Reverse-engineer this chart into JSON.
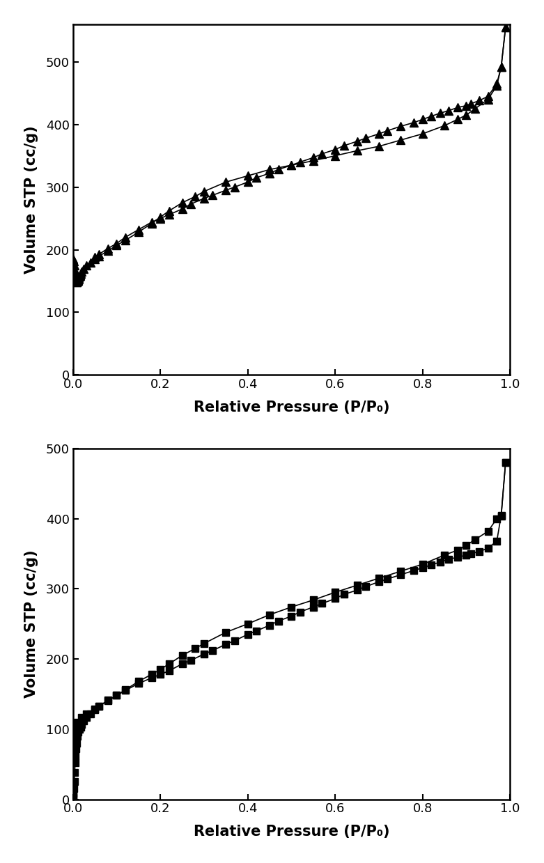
{
  "plot1": {
    "ylabel": "Volume STP (cc/g)",
    "xlabel": "Relative Pressure (P/P₀)",
    "ylim": [
      0,
      560
    ],
    "xlim": [
      0.0,
      1.0
    ],
    "yticks": [
      0,
      100,
      200,
      300,
      400,
      500
    ],
    "xticks": [
      0.0,
      0.2,
      0.4,
      0.6,
      0.8,
      1.0
    ],
    "adsorption_x": [
      0.0005,
      0.001,
      0.002,
      0.003,
      0.004,
      0.005,
      0.006,
      0.007,
      0.008,
      0.009,
      0.01,
      0.011,
      0.012,
      0.013,
      0.014,
      0.015,
      0.016,
      0.017,
      0.018,
      0.02,
      0.025,
      0.03,
      0.04,
      0.05,
      0.06,
      0.08,
      0.1,
      0.12,
      0.15,
      0.18,
      0.2,
      0.22,
      0.25,
      0.28,
      0.3,
      0.35,
      0.4,
      0.45,
      0.5,
      0.55,
      0.6,
      0.65,
      0.7,
      0.75,
      0.8,
      0.85,
      0.88,
      0.9,
      0.92,
      0.95,
      0.97,
      0.98,
      0.99
    ],
    "adsorption_y": [
      185,
      185,
      182,
      175,
      168,
      162,
      155,
      150,
      148,
      148,
      149,
      150,
      151,
      153,
      155,
      157,
      158,
      160,
      162,
      165,
      170,
      175,
      180,
      185,
      190,
      198,
      207,
      215,
      228,
      242,
      252,
      262,
      275,
      285,
      293,
      308,
      318,
      328,
      335,
      342,
      350,
      358,
      365,
      375,
      385,
      398,
      408,
      415,
      425,
      440,
      462,
      492,
      555
    ],
    "desorption_x": [
      0.99,
      0.98,
      0.97,
      0.95,
      0.93,
      0.91,
      0.9,
      0.88,
      0.86,
      0.84,
      0.82,
      0.8,
      0.78,
      0.75,
      0.72,
      0.7,
      0.67,
      0.65,
      0.62,
      0.6,
      0.57,
      0.55,
      0.52,
      0.5,
      0.47,
      0.45,
      0.42,
      0.4,
      0.37,
      0.35,
      0.32,
      0.3,
      0.27,
      0.25,
      0.22,
      0.2,
      0.18,
      0.15,
      0.12,
      0.1,
      0.08,
      0.06,
      0.05
    ],
    "desorption_y": [
      555,
      492,
      465,
      445,
      438,
      433,
      430,
      427,
      422,
      418,
      413,
      408,
      403,
      397,
      390,
      385,
      378,
      373,
      366,
      360,
      353,
      347,
      340,
      335,
      328,
      322,
      315,
      308,
      300,
      295,
      287,
      282,
      273,
      265,
      256,
      250,
      244,
      232,
      220,
      210,
      202,
      193,
      188
    ]
  },
  "plot2": {
    "ylabel": "Volume STP (cc/g)",
    "xlabel": "Relative Pressure (P/P₀)",
    "ylim": [
      0,
      500
    ],
    "xlim": [
      0.0,
      1.0
    ],
    "yticks": [
      0,
      100,
      200,
      300,
      400,
      500
    ],
    "xticks": [
      0.0,
      0.2,
      0.4,
      0.6,
      0.8,
      1.0
    ],
    "adsorption_x": [
      0.0003,
      0.0005,
      0.001,
      0.002,
      0.003,
      0.004,
      0.005,
      0.006,
      0.007,
      0.008,
      0.01,
      0.012,
      0.015,
      0.018,
      0.02,
      0.025,
      0.03,
      0.04,
      0.05,
      0.06,
      0.08,
      0.1,
      0.12,
      0.15,
      0.18,
      0.2,
      0.22,
      0.25,
      0.28,
      0.3,
      0.35,
      0.4,
      0.45,
      0.5,
      0.55,
      0.6,
      0.65,
      0.7,
      0.75,
      0.8,
      0.85,
      0.88,
      0.9,
      0.92,
      0.95,
      0.97,
      0.98,
      0.99
    ],
    "adsorption_y": [
      3,
      5,
      8,
      15,
      25,
      38,
      52,
      62,
      72,
      80,
      90,
      96,
      100,
      103,
      107,
      112,
      117,
      122,
      128,
      133,
      141,
      148,
      156,
      168,
      178,
      185,
      193,
      205,
      215,
      222,
      238,
      250,
      263,
      274,
      284,
      295,
      305,
      315,
      325,
      335,
      348,
      355,
      362,
      370,
      382,
      400,
      404,
      480
    ],
    "desorption_x": [
      0.99,
      0.98,
      0.97,
      0.95,
      0.93,
      0.91,
      0.9,
      0.88,
      0.86,
      0.84,
      0.82,
      0.8,
      0.78,
      0.75,
      0.72,
      0.7,
      0.67,
      0.65,
      0.62,
      0.6,
      0.57,
      0.55,
      0.52,
      0.5,
      0.47,
      0.45,
      0.42,
      0.4,
      0.37,
      0.35,
      0.32,
      0.3,
      0.27,
      0.25,
      0.22,
      0.2,
      0.18,
      0.15,
      0.12,
      0.1,
      0.08,
      0.06,
      0.05,
      0.03,
      0.02,
      0.01,
      0.005,
      0.002,
      0.001
    ],
    "desorption_y": [
      480,
      405,
      368,
      358,
      353,
      350,
      348,
      345,
      342,
      338,
      334,
      330,
      326,
      320,
      314,
      310,
      303,
      298,
      292,
      286,
      279,
      274,
      267,
      261,
      254,
      248,
      240,
      235,
      226,
      221,
      212,
      207,
      198,
      193,
      183,
      178,
      173,
      165,
      155,
      148,
      140,
      133,
      129,
      122,
      117,
      110,
      105,
      100,
      92
    ]
  },
  "line_color": "#000000",
  "marker_color": "#000000",
  "linewidth": 1.2,
  "markersize1": 8,
  "markersize2": 7,
  "background_color": "#ffffff",
  "label_fontsize": 15,
  "tick_fontsize": 13,
  "label_fontweight": "bold"
}
